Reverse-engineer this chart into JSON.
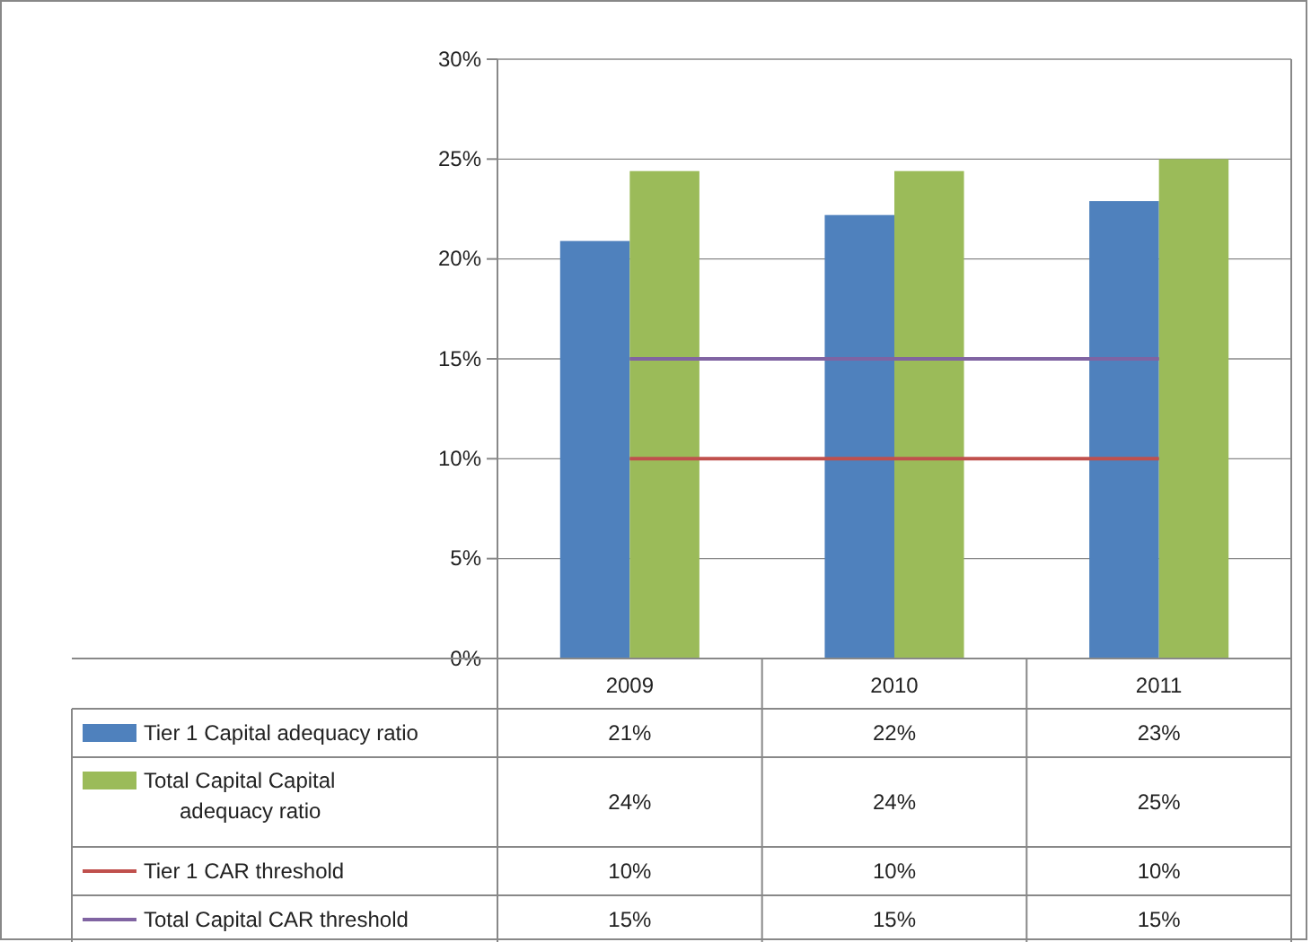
{
  "chart_data": {
    "type": "bar",
    "categories": [
      "2009",
      "2010",
      "2011"
    ],
    "series": [
      {
        "name": "Tier 1 Capital adequacy ratio",
        "color": "#4f81bd",
        "values": [
          20.9,
          22.2,
          22.9
        ],
        "value_labels": [
          "21%",
          "22%",
          "23%"
        ]
      },
      {
        "name": "Total Capital Capital adequacy ratio",
        "color": "#9bbb59",
        "values": [
          24.4,
          24.4,
          25.0
        ],
        "value_labels": [
          "24%",
          "24%",
          "25%"
        ]
      },
      {
        "name": "Tier 1 CAR threshold",
        "type": "line",
        "color": "#c0504d",
        "values": [
          10,
          10,
          10
        ],
        "value_labels": [
          "10%",
          "10%",
          "10%"
        ]
      },
      {
        "name": "Total Capital CAR threshold",
        "type": "line",
        "color": "#8064a2",
        "values": [
          15,
          15,
          15
        ],
        "value_labels": [
          "15%",
          "15%",
          "15%"
        ]
      }
    ],
    "ylim": [
      0,
      30
    ],
    "yticks": [
      {
        "value": 0,
        "label": "0%"
      },
      {
        "value": 5,
        "label": "5%"
      },
      {
        "value": 10,
        "label": "10%"
      },
      {
        "value": 15,
        "label": "15%"
      },
      {
        "value": 20,
        "label": "20%"
      },
      {
        "value": 25,
        "label": "25%"
      },
      {
        "value": 30,
        "label": "30%"
      }
    ],
    "grid": "y",
    "legend": "bottom",
    "marker": "none"
  }
}
